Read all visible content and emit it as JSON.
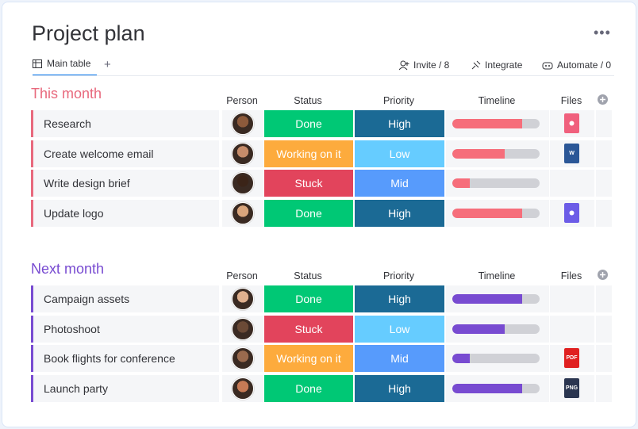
{
  "header": {
    "title": "Project plan"
  },
  "tabs": [
    "Main table"
  ],
  "toolbar": [
    "Invite / 8",
    "Integrate",
    "Automate / 0"
  ],
  "groups": [
    {
      "title": "This month",
      "color": "#e8697d",
      "bar_color": "#f66e7b",
      "columns": [
        "Person",
        "Status",
        "Priority",
        "Timeline",
        "Files"
      ],
      "rows": [
        {
          "name": "Research",
          "status": {
            "label": "Done",
            "color": "#00c875"
          },
          "priority": {
            "label": "High",
            "color": "#1b6a95"
          },
          "timeline": 80,
          "file": {
            "color": "#f0607d"
          }
        },
        {
          "name": "Create welcome email",
          "status": {
            "label": "Working on it",
            "color": "#fdab3d"
          },
          "priority": {
            "label": "Low",
            "color": "#66ccff"
          },
          "timeline": 60,
          "file": {
            "label": "W",
            "color": "#2b5797"
          }
        },
        {
          "name": "Write design brief",
          "status": {
            "label": "Stuck",
            "color": "#e2445c"
          },
          "priority": {
            "label": "Mid",
            "color": "#579bfc"
          },
          "timeline": 20,
          "file": null
        },
        {
          "name": "Update logo",
          "status": {
            "label": "Done",
            "color": "#00c875"
          },
          "priority": {
            "label": "High",
            "color": "#1b6a95"
          },
          "timeline": 80,
          "file": {
            "color": "#6c5ce7"
          }
        }
      ]
    },
    {
      "title": "Next month",
      "color": "#784bd1",
      "bar_color": "#784bd1",
      "columns": [
        "Person",
        "Status",
        "Priority",
        "Timeline",
        "Files"
      ],
      "rows": [
        {
          "name": "Campaign assets",
          "status": {
            "label": "Done",
            "color": "#00c875"
          },
          "priority": {
            "label": "High",
            "color": "#1b6a95"
          },
          "timeline": 80,
          "file": null
        },
        {
          "name": "Photoshoot",
          "status": {
            "label": "Stuck",
            "color": "#e2445c"
          },
          "priority": {
            "label": "Low",
            "color": "#66ccff"
          },
          "timeline": 60,
          "file": null
        },
        {
          "name": "Book flights for conference",
          "status": {
            "label": "Working on it",
            "color": "#fdab3d"
          },
          "priority": {
            "label": "Mid",
            "color": "#579bfc"
          },
          "timeline": 20,
          "file": {
            "label": "PDF",
            "color": "#e02020"
          }
        },
        {
          "name": "Launch party",
          "status": {
            "label": "Done",
            "color": "#00c875"
          },
          "priority": {
            "label": "High",
            "color": "#1b6a95"
          },
          "timeline": 80,
          "file": {
            "label": "PNG",
            "color": "#2a3550"
          }
        }
      ]
    }
  ]
}
